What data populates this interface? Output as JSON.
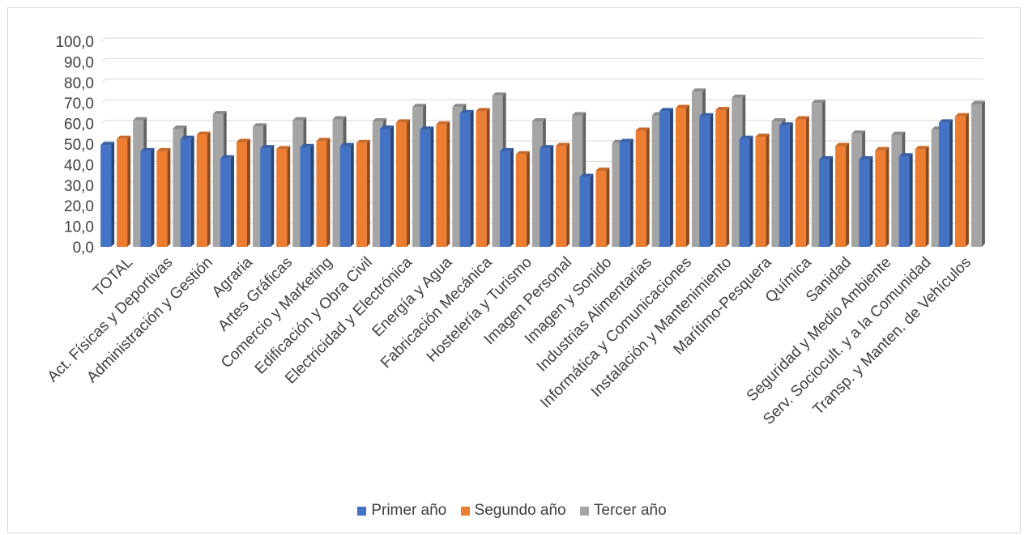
{
  "chart_data": {
    "type": "bar",
    "title": "",
    "xlabel": "",
    "ylabel": "",
    "ylim": [
      0,
      100
    ],
    "ytick_step": 10,
    "ytick_labels": [
      "0,0",
      "10,0",
      "20,0",
      "30,0",
      "40,0",
      "50,0",
      "60,0",
      "70,0",
      "80,0",
      "90,0",
      "100,0"
    ],
    "grid": true,
    "legend_position": "bottom",
    "categories": [
      "TOTAL",
      "Act. Físicas y Deportivas",
      "Administración y Gestión",
      "Agraria",
      "Artes Gráficas",
      "Comercio y Marketing",
      "Edificación y Obra Civil",
      "Electricidad y Electrónica",
      "Energía y Agua",
      "Fabricación Mecánica",
      "Hostelería y Turismo",
      "Imagen Personal",
      "Imagen y Sonido",
      "Industrias Alimentarias",
      "Informática y Comunicaciones",
      "Instalación y Mantenimiento",
      "Marítimo-Pesquera",
      "Química",
      "Sanidad",
      "Seguridad y Medio Ambiente",
      "Serv. Sociocult. y a la Comunidad",
      "Transp. y Manten. de Vehículos"
    ],
    "series": [
      {
        "name": "Primer año",
        "color": "#4472c4",
        "values": [
          49.5,
          46.5,
          52.5,
          43.0,
          48.0,
          48.5,
          49.0,
          57.5,
          57.0,
          65.0,
          46.5,
          48.0,
          34.0,
          51.0,
          66.0,
          63.5,
          52.5,
          59.0,
          42.5,
          42.5,
          44.0,
          60.5
        ]
      },
      {
        "name": "Segundo año",
        "color": "#ed7d31",
        "values": [
          52.5,
          46.5,
          54.5,
          51.0,
          47.5,
          51.5,
          50.5,
          60.5,
          59.5,
          66.0,
          45.0,
          49.0,
          37.0,
          56.5,
          67.5,
          66.5,
          53.5,
          62.0,
          49.0,
          47.0,
          47.5,
          63.5
        ]
      },
      {
        "name": "Tercer año",
        "color": "#a5a5a5",
        "values": [
          61.5,
          57.5,
          64.5,
          58.5,
          61.5,
          62.0,
          61.0,
          68.0,
          68.0,
          73.5,
          61.0,
          64.0,
          50.5,
          64.0,
          75.5,
          72.5,
          61.0,
          70.0,
          55.0,
          54.5,
          57.0,
          69.5
        ]
      }
    ]
  }
}
